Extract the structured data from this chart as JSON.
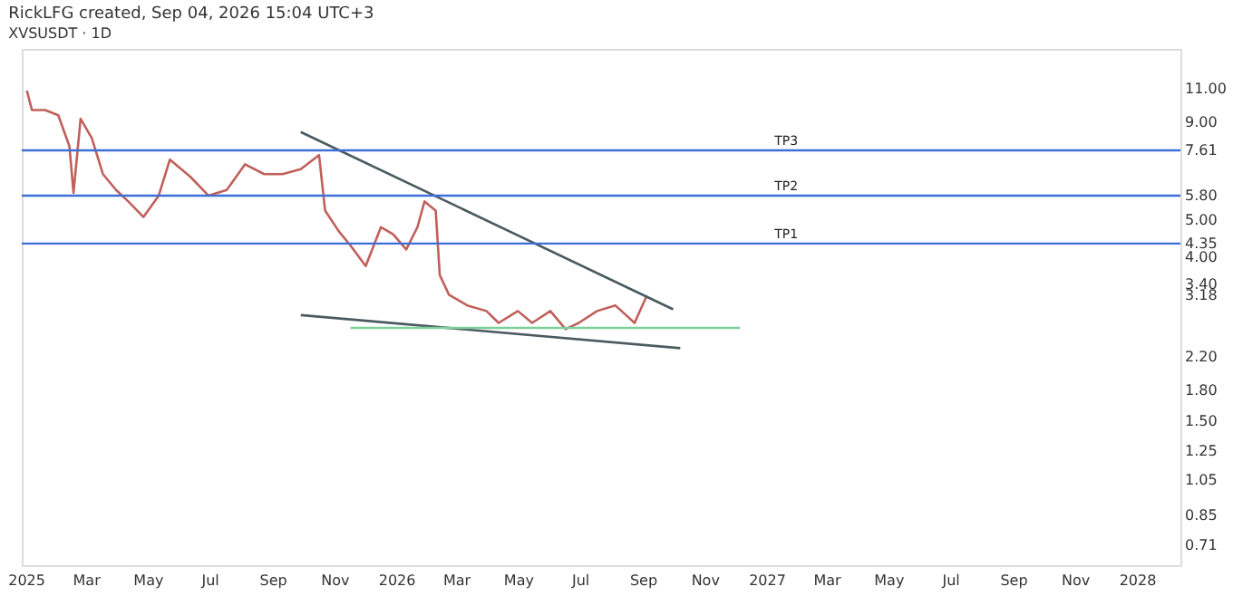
{
  "chart_data": {
    "type": "line",
    "title": "RickLFG created, Sep 04, 2026 15:04 UTC+3",
    "subtitle": "XVSUSDT · 1D",
    "log": "y",
    "grid": false,
    "marker": "none",
    "line_style": "solid",
    "xlim": [
      "2024-12-27",
      "2028-02-12"
    ],
    "xticks": [
      {
        "value": "2025-01-01",
        "label": "2025"
      },
      {
        "value": "2025-03-01",
        "label": "Mar"
      },
      {
        "value": "2025-05-01",
        "label": "May"
      },
      {
        "value": "2025-07-01",
        "label": "Jul"
      },
      {
        "value": "2025-09-01",
        "label": "Sep"
      },
      {
        "value": "2025-11-01",
        "label": "Nov"
      },
      {
        "value": "2026-01-01",
        "label": "2026"
      },
      {
        "value": "2026-03-01",
        "label": "Mar"
      },
      {
        "value": "2026-05-01",
        "label": "May"
      },
      {
        "value": "2026-07-01",
        "label": "Jul"
      },
      {
        "value": "2026-09-01",
        "label": "Sep"
      },
      {
        "value": "2026-11-01",
        "label": "Nov"
      },
      {
        "value": "2027-01-01",
        "label": "2027"
      },
      {
        "value": "2027-03-01",
        "label": "Mar"
      },
      {
        "value": "2027-05-01",
        "label": "May"
      },
      {
        "value": "2027-07-01",
        "label": "Jul"
      },
      {
        "value": "2027-09-01",
        "label": "Sep"
      },
      {
        "value": "2027-11-01",
        "label": "Nov"
      },
      {
        "value": "2028-01-01",
        "label": "2028"
      }
    ],
    "ylim": [
      0.63,
      14
    ],
    "yticks": [
      {
        "value": 11,
        "label": "11.00"
      },
      {
        "value": 9,
        "label": "9.00"
      },
      {
        "value": 7.61,
        "label": "7.61"
      },
      {
        "value": 5.8,
        "label": "5.80"
      },
      {
        "value": 5,
        "label": "5.00"
      },
      {
        "value": 4.35,
        "label": "4.35"
      },
      {
        "value": 4,
        "label": "4.00"
      },
      {
        "value": 3.4,
        "label": "3.40"
      },
      {
        "value": 3.18,
        "label": "3.18"
      },
      {
        "value": 2.2,
        "label": "2.20"
      },
      {
        "value": 1.8,
        "label": "1.80"
      },
      {
        "value": 1.5,
        "label": "1.50"
      },
      {
        "value": 1.25,
        "label": "1.25"
      },
      {
        "value": 1.05,
        "label": "1.05"
      },
      {
        "value": 0.85,
        "label": "0.85"
      },
      {
        "value": 0.71,
        "label": "0.71"
      }
    ],
    "series": [
      {
        "color": "#c0605a",
        "x": [
          "2025-01-01",
          "2025-01-06",
          "2025-01-19",
          "2025-02-01",
          "2025-02-12",
          "2025-02-16",
          "2025-02-23",
          "2025-03-06",
          "2025-03-17",
          "2025-03-30",
          "2025-04-11",
          "2025-04-26",
          "2025-05-11",
          "2025-05-22",
          "2025-06-11",
          "2025-06-29",
          "2025-07-17",
          "2025-08-04",
          "2025-08-23",
          "2025-09-10",
          "2025-09-28",
          "2025-10-16",
          "2025-10-22",
          "2025-11-04",
          "2025-11-16",
          "2025-12-01",
          "2025-12-16",
          "2025-12-28",
          "2026-01-10",
          "2026-01-21",
          "2026-01-28",
          "2026-02-08",
          "2026-02-12",
          "2026-02-21",
          "2026-03-11",
          "2026-03-30",
          "2026-04-11",
          "2026-04-30",
          "2026-05-14",
          "2026-06-01",
          "2026-06-16",
          "2026-06-29",
          "2026-07-17",
          "2026-08-04",
          "2026-08-23",
          "2026-09-04"
        ],
        "values": [
          10.9,
          9.7,
          9.7,
          9.4,
          7.8,
          5.9,
          9.2,
          8.2,
          6.6,
          6.0,
          5.6,
          5.1,
          5.8,
          7.2,
          6.5,
          5.8,
          6.0,
          7.0,
          6.6,
          6.6,
          6.8,
          7.4,
          5.3,
          4.7,
          4.3,
          3.8,
          4.8,
          4.6,
          4.2,
          4.8,
          5.6,
          5.3,
          3.6,
          3.2,
          3.0,
          2.9,
          2.7,
          2.9,
          2.7,
          2.9,
          2.6,
          2.7,
          2.9,
          3.0,
          2.7,
          3.18
        ]
      },
      {
        "type": "line",
        "color": "#4a5a60",
        "x": [
          "2025-09-28",
          "2026-09-30"
        ],
        "values": [
          8.5,
          2.93
        ]
      },
      {
        "type": "line",
        "color": "#4a5a60",
        "x": [
          "2025-09-28",
          "2026-10-07"
        ],
        "values": [
          2.83,
          2.32
        ]
      },
      {
        "type": "line",
        "color": "#7fcf9a",
        "x": [
          "2025-11-16",
          "2026-12-05"
        ],
        "values": [
          2.62,
          2.62
        ]
      }
    ],
    "ref_lines": [
      {
        "axis": "y",
        "value": 4.35,
        "label": "TP1",
        "color": "#3d6fd6"
      },
      {
        "axis": "y",
        "value": 5.8,
        "label": "TP2",
        "color": "#3d6fd6"
      },
      {
        "axis": "y",
        "value": 7.61,
        "label": "TP3",
        "color": "#3d6fd6"
      }
    ]
  }
}
